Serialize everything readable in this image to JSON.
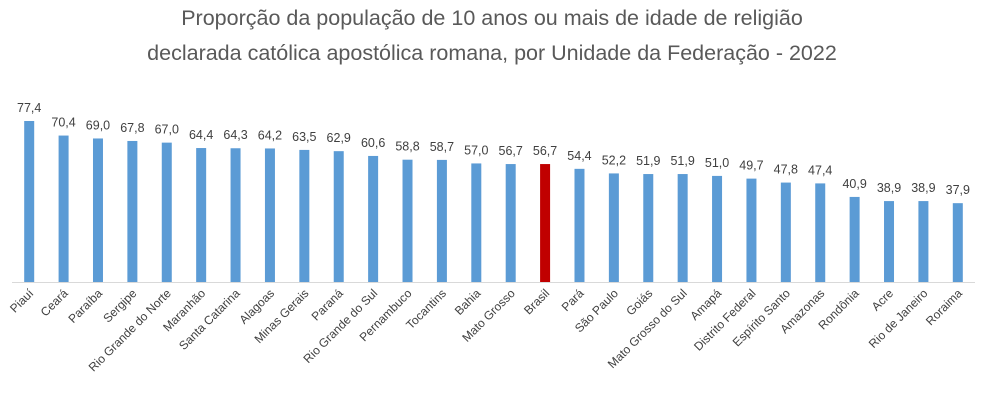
{
  "chart_data": {
    "type": "bar",
    "title": "Proporção da população de 10 anos ou mais de idade de religião declarada católica apostólica romana, por Unidade da Federação - 2022",
    "title_lines": [
      "Proporção da população de 10 anos ou mais de idade de religião",
      "declarada católica apostólica romana, por Unidade da Federação - 2022"
    ],
    "xlabel": "",
    "ylabel": "",
    "ylim": [
      0,
      80
    ],
    "grid": false,
    "categories": [
      "Piauí",
      "Ceará",
      "Paraíba",
      "Sergipe",
      "Rio Grande do Norte",
      "Maranhão",
      "Santa Catarina",
      "Alagoas",
      "Minas Gerais",
      "Paraná",
      "Rio Grande do Sul",
      "Pernambuco",
      "Tocantins",
      "Bahia",
      "Mato Grosso",
      "Brasil",
      "Pará",
      "São Paulo",
      "Goiás",
      "Mato Grosso do Sul",
      "Amapá",
      "Distrito Federal",
      "Espírito Santo",
      "Amazonas",
      "Rondônia",
      "Acre",
      "Rio de Janeiro",
      "Roraima"
    ],
    "values": [
      77.4,
      70.4,
      69.0,
      67.8,
      67.0,
      64.4,
      64.3,
      64.2,
      63.5,
      62.9,
      60.6,
      58.8,
      58.7,
      57.0,
      56.7,
      56.7,
      54.4,
      52.2,
      51.9,
      51.9,
      51.0,
      49.7,
      47.8,
      47.4,
      40.9,
      38.9,
      38.9,
      37.9
    ],
    "value_labels": [
      "77,4",
      "70,4",
      "69,0",
      "67,8",
      "67,0",
      "64,4",
      "64,3",
      "64,2",
      "63,5",
      "62,9",
      "60,6",
      "58,8",
      "58,7",
      "57,0",
      "56,7",
      "56,7",
      "54,4",
      "52,2",
      "51,9",
      "51,9",
      "51,0",
      "49,7",
      "47,8",
      "47,4",
      "40,9",
      "38,9",
      "38,9",
      "37,9"
    ],
    "highlight_category": "Brasil",
    "colors": {
      "bar": "#5b9bd5",
      "highlight": "#c00000",
      "axis": "#d9d9d9",
      "text": "#404040",
      "title": "#595959"
    }
  }
}
